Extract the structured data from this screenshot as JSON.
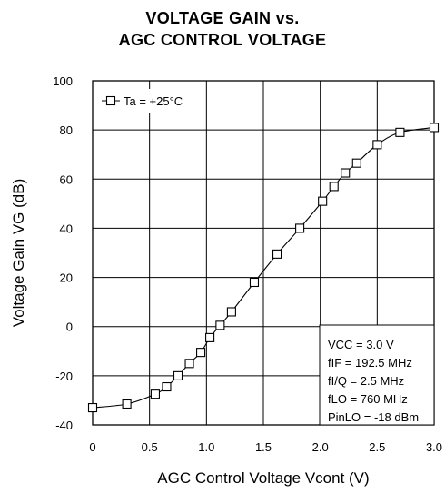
{
  "chart_data": {
    "type": "line",
    "title_line1": "VOLTAGE GAIN vs.",
    "title_line2": "AGC CONTROL VOLTAGE",
    "xlabel": "AGC Control Voltage  Vcont (V)",
    "ylabel": "Voltage Gain  VG (dB)",
    "xlim": [
      0,
      3.0
    ],
    "ylim": [
      -40,
      100
    ],
    "xticks": [
      "0",
      "0.5",
      "1.0",
      "1.5",
      "2.0",
      "2.5",
      "3.0"
    ],
    "yticks": [
      "-40",
      "-20",
      "0",
      "20",
      "40",
      "60",
      "80",
      "100"
    ],
    "grid": true,
    "legend_position": "top-left",
    "series": [
      {
        "name": "Ta = +25°C",
        "marker": "open-square",
        "x": [
          0,
          0.3,
          0.55,
          0.65,
          0.75,
          0.85,
          0.95,
          1.03,
          1.12,
          1.22,
          1.42,
          1.62,
          1.82,
          2.02,
          2.12,
          2.22,
          2.32,
          2.5,
          2.7,
          3.0
        ],
        "y": [
          -33,
          -31.5,
          -27.5,
          -24.5,
          -20,
          -15,
          -10.5,
          -4.5,
          0.5,
          6,
          18,
          29.5,
          40,
          51,
          57,
          62.5,
          66.5,
          74,
          79,
          81
        ]
      }
    ],
    "annotation_lines": [
      "VCC = 3.0 V",
      "fIF = 192.5 MHz",
      "fI/Q = 2.5 MHz",
      "fLO = 760 MHz",
      "PinLO = -18 dBm"
    ]
  }
}
